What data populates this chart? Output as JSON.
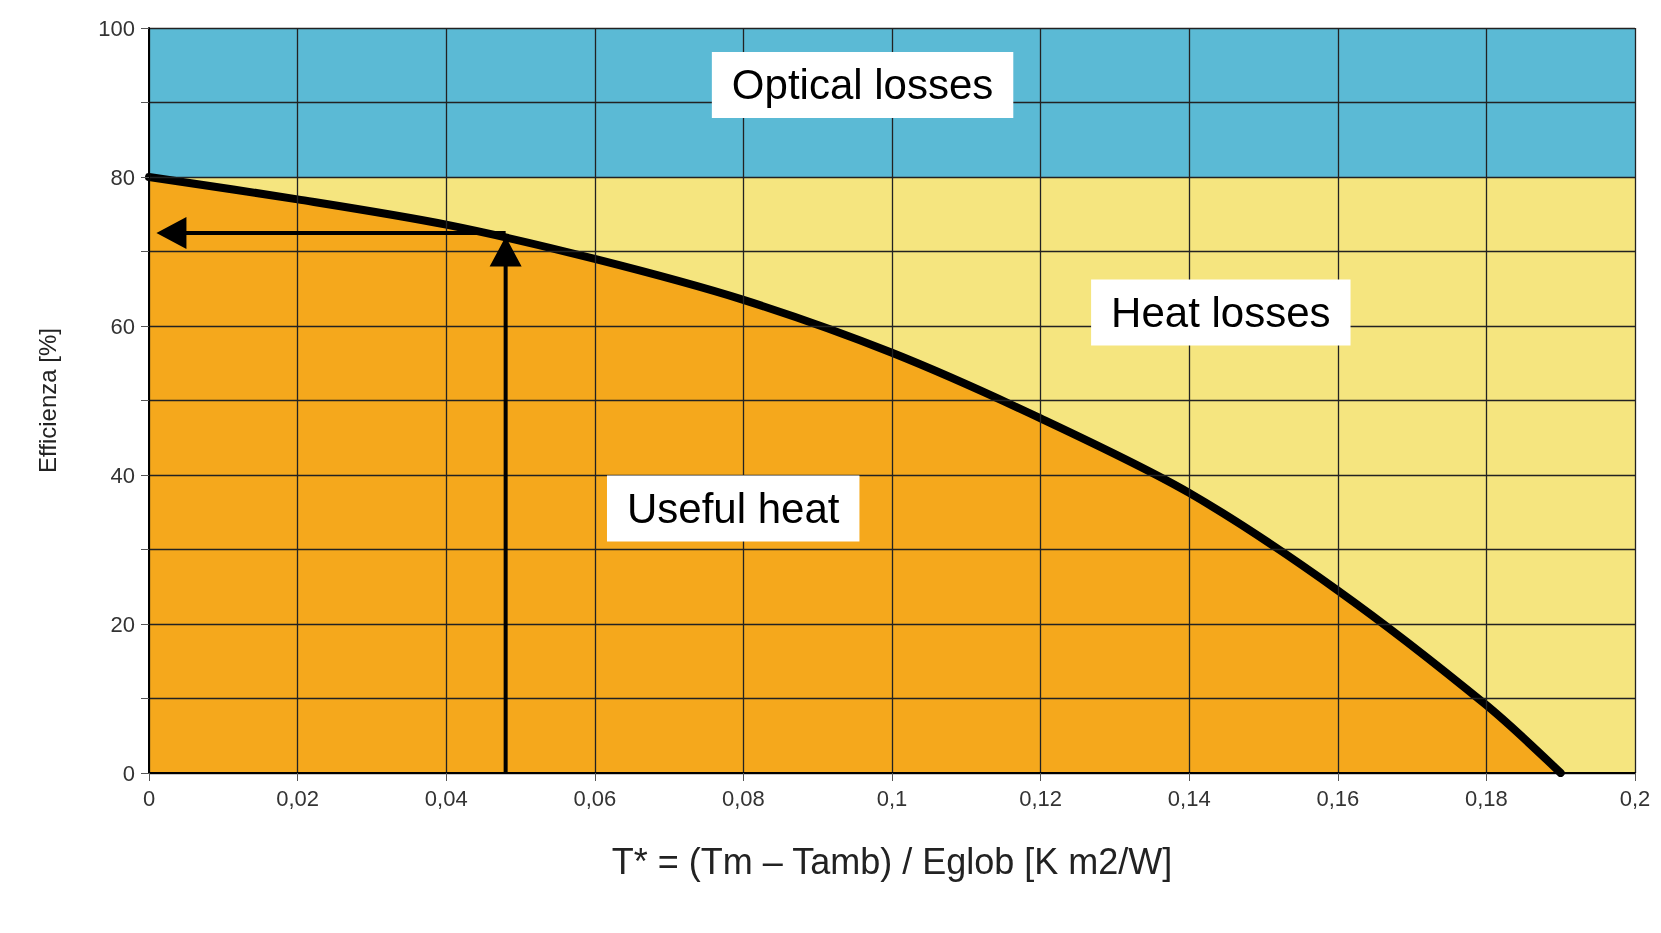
{
  "chart_data": {
    "type": "area",
    "xlabel": "T* = (Tm – Tamb) / Eglob [K m2/W]",
    "ylabel": "Efficienza [%]",
    "x": [
      0,
      0.02,
      0.04,
      0.06,
      0.08,
      0.1,
      0.12,
      0.14,
      0.16,
      0.18,
      0.19
    ],
    "series": [
      {
        "color": "#f5a81c",
        "values": [
          80,
          77,
          73.6,
          69,
          63.5,
          56.4,
          47.6,
          37.6,
          24.5,
          9.1,
          0
        ]
      }
    ],
    "xlim": [
      0,
      0.2
    ],
    "xticks": [
      0,
      {
        "value": 0.02,
        "label": "0,02"
      },
      {
        "value": 0.04,
        "label": "0,04"
      },
      {
        "value": 0.06,
        "label": "0,06"
      },
      {
        "value": 0.08,
        "label": "0,08"
      },
      {
        "value": 0.1,
        "label": "0,1"
      },
      {
        "value": 0.12,
        "label": "0,12"
      },
      {
        "value": 0.14,
        "label": "0,14"
      },
      {
        "value": 0.16,
        "label": "0,16"
      },
      {
        "value": 0.18,
        "label": "0,18"
      },
      {
        "value": 0.2,
        "label": "0,2"
      }
    ],
    "ylim": [
      0,
      100
    ],
    "yticks": [
      0,
      {
        "value": 10,
        "label": null
      },
      20,
      {
        "value": 30,
        "label": null
      },
      40,
      {
        "value": 50,
        "label": null
      },
      60,
      {
        "value": 70,
        "label": null
      },
      80,
      {
        "value": 90,
        "label": null
      },
      100
    ],
    "bands": [
      {
        "axis": "y",
        "from": 80,
        "to": 100,
        "color": "#5bbad5"
      },
      {
        "axis": "y",
        "from": 0,
        "to": 80,
        "color": "#f5e57f"
      }
    ],
    "annotations": [
      "Optical losses",
      "Heat losses",
      "Useful heat"
    ],
    "grid": true
  }
}
